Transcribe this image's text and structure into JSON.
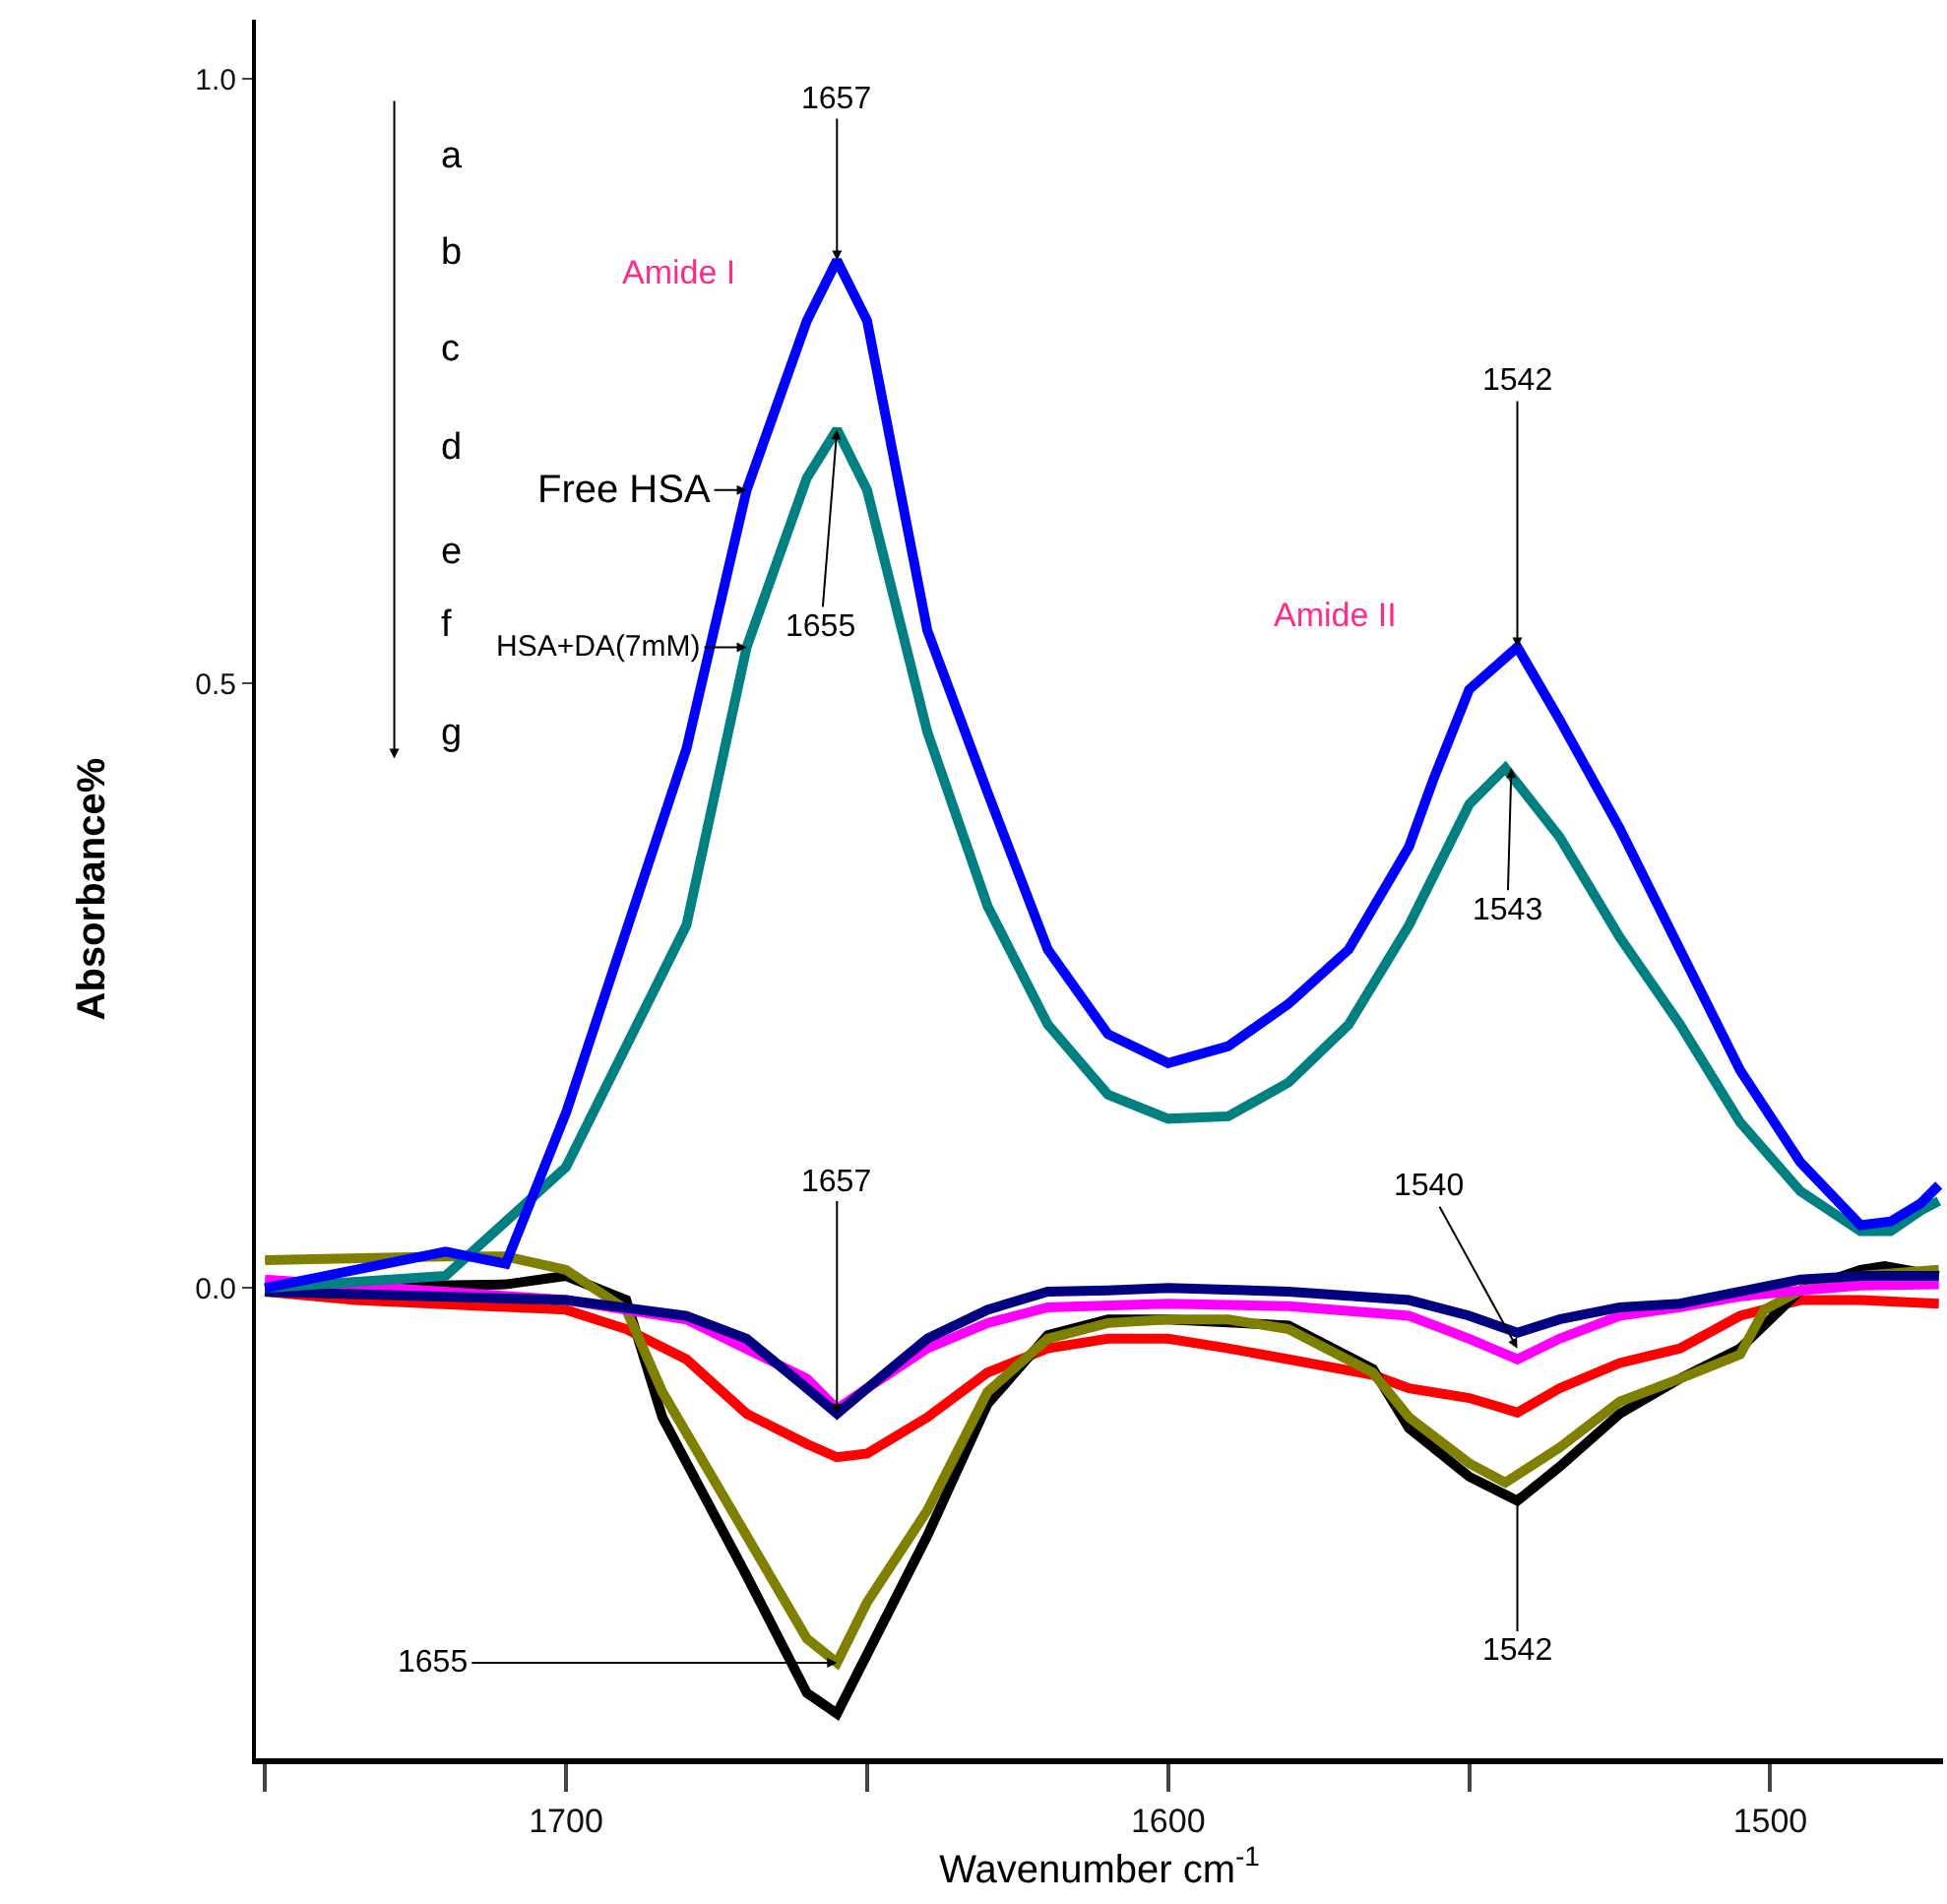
{
  "chart_data": {
    "type": "line",
    "xlabel": "Wavenumber cm$^{-1}$",
    "ylabel": "Absorbance%",
    "xlim": [
      1751.5,
      1471.3
    ],
    "ylim": [
      -0.389,
      1.049
    ],
    "xticks": [
      {
        "value": 1750,
        "label": null
      },
      1700,
      {
        "value": 1650,
        "label": null
      },
      1600,
      {
        "value": 1550,
        "label": null
      },
      1500
    ],
    "yticks": [
      {
        "value": 0,
        "label": "0.0"
      },
      0.5,
      {
        "value": 1,
        "label": "1.0"
      }
    ],
    "line_style": "solid",
    "series": [
      {
        "color": "#ff0000",
        "x": [
          1750,
          1735,
          1700,
          1690,
          1680,
          1670,
          1660,
          1655,
          1650,
          1640,
          1630,
          1620,
          1610,
          1600,
          1590,
          1580,
          1566,
          1560,
          1550,
          1542,
          1535,
          1525,
          1515,
          1505,
          1495,
          1485,
          1472
        ],
        "values": [
          -0.003,
          -0.01,
          -0.018,
          -0.034,
          -0.059,
          -0.104,
          -0.129,
          -0.14,
          -0.137,
          -0.107,
          -0.07,
          -0.05,
          -0.042,
          -0.042,
          -0.05,
          -0.059,
          -0.072,
          -0.083,
          -0.091,
          -0.103,
          -0.083,
          -0.062,
          -0.05,
          -0.023,
          -0.01,
          -0.01,
          -0.013
        ]
      },
      {
        "color": "#000000",
        "x": [
          1750,
          1710,
          1700,
          1690,
          1684,
          1670,
          1660,
          1655,
          1650,
          1640,
          1630,
          1620,
          1610,
          1600,
          1580,
          1566,
          1560,
          1550,
          1542,
          1535,
          1525,
          1515,
          1505,
          1495,
          1485,
          1481,
          1472
        ],
        "values": [
          0,
          0.003,
          0.01,
          -0.01,
          -0.107,
          -0.238,
          -0.335,
          -0.352,
          -0.303,
          -0.205,
          -0.096,
          -0.039,
          -0.026,
          -0.026,
          -0.031,
          -0.067,
          -0.116,
          -0.156,
          -0.176,
          -0.148,
          -0.104,
          -0.075,
          -0.05,
          -0.002,
          0.015,
          0.018,
          0.01
        ]
      },
      {
        "color": "#808000",
        "x": [
          1750,
          1720,
          1710,
          1700,
          1690,
          1684,
          1670,
          1660,
          1655,
          1650,
          1640,
          1630,
          1620,
          1610,
          1600,
          1590,
          1580,
          1566,
          1560,
          1550,
          1544,
          1535,
          1525,
          1515,
          1505,
          1501,
          1495,
          1485,
          1472
        ],
        "values": [
          0.023,
          0.026,
          0.026,
          0.015,
          -0.018,
          -0.086,
          -0.205,
          -0.29,
          -0.31,
          -0.26,
          -0.184,
          -0.086,
          -0.042,
          -0.029,
          -0.026,
          -0.026,
          -0.034,
          -0.07,
          -0.107,
          -0.145,
          -0.161,
          -0.132,
          -0.094,
          -0.075,
          -0.055,
          -0.018,
          -0.002,
          0.01,
          0.015
        ]
      },
      {
        "color": "#ff00ff",
        "x": [
          1750,
          1700,
          1680,
          1660,
          1655,
          1650,
          1640,
          1630,
          1620,
          1600,
          1580,
          1560,
          1550,
          1542,
          1535,
          1525,
          1515,
          1505,
          1495,
          1485,
          1472
        ],
        "values": [
          0.007,
          -0.01,
          -0.026,
          -0.075,
          -0.1,
          -0.083,
          -0.05,
          -0.029,
          -0.016,
          -0.013,
          -0.015,
          -0.023,
          -0.042,
          -0.059,
          -0.042,
          -0.023,
          -0.016,
          -0.007,
          -0.002,
          0.002,
          0.003
        ]
      },
      {
        "color": "#000080",
        "x": [
          1750,
          1700,
          1680,
          1670,
          1660,
          1655,
          1650,
          1640,
          1630,
          1620,
          1610,
          1600,
          1580,
          1560,
          1550,
          1542,
          1535,
          1525,
          1515,
          1505,
          1495,
          1485,
          1472
        ],
        "values": [
          -0.003,
          -0.01,
          -0.023,
          -0.042,
          -0.083,
          -0.104,
          -0.083,
          -0.042,
          -0.018,
          -0.003,
          -0.002,
          0,
          -0.003,
          -0.01,
          -0.023,
          -0.037,
          -0.026,
          -0.016,
          -0.013,
          -0.003,
          0.007,
          0.01,
          0.01
        ]
      },
      {
        "color": "#008080",
        "x": [
          1750,
          1720,
          1700,
          1680,
          1670,
          1660,
          1655,
          1650,
          1640,
          1630,
          1620,
          1610,
          1600,
          1590,
          1580,
          1570,
          1560,
          1550,
          1544,
          1535,
          1525,
          1515,
          1505,
          1495,
          1485,
          1480,
          1475,
          1472
        ],
        "values": [
          0,
          0.01,
          0.1,
          0.3,
          0.53,
          0.67,
          0.71,
          0.66,
          0.46,
          0.316,
          0.218,
          0.16,
          0.14,
          0.142,
          0.17,
          0.218,
          0.3,
          0.4,
          0.43,
          0.373,
          0.29,
          0.218,
          0.137,
          0.08,
          0.047,
          0.047,
          0.064,
          0.072
        ]
      },
      {
        "color": "#0000ff",
        "x": [
          1750,
          1720,
          1710,
          1700,
          1680,
          1670,
          1660,
          1655,
          1650,
          1640,
          1630,
          1620,
          1610,
          1600,
          1590,
          1580,
          1570,
          1560,
          1556,
          1550,
          1542,
          1535,
          1525,
          1515,
          1505,
          1495,
          1485,
          1480,
          1475,
          1472
        ],
        "values": [
          0,
          0.03,
          0.02,
          0.145,
          0.446,
          0.66,
          0.8,
          0.85,
          0.8,
          0.544,
          0.41,
          0.28,
          0.21,
          0.186,
          0.2,
          0.235,
          0.28,
          0.365,
          0.42,
          0.495,
          0.53,
          0.47,
          0.38,
          0.28,
          0.18,
          0.104,
          0.052,
          0.055,
          0.07,
          0.085
        ]
      }
    ],
    "annotations": [
      "a",
      "b",
      "c",
      "d",
      "e",
      "f",
      "g",
      "Amide I",
      "Amide II",
      {
        "text": "1657",
        "x": 1655,
        "y": 0.85
      },
      {
        "text": "Free HSA",
        "x": 1670,
        "y": 0.66
      },
      {
        "text": "HSA+DA(7mM)",
        "x": 1670,
        "y": 0.53
      },
      {
        "text": "1655",
        "x": 1655,
        "y": 0.71
      },
      {
        "text": "1542",
        "x": 1542,
        "y": 0.53
      },
      {
        "text": "1543",
        "x": 1543,
        "y": 0.43
      },
      {
        "text": "1657",
        "x": 1655,
        "y": -0.104
      },
      {
        "text": "1655",
        "x": 1655,
        "y": -0.31
      },
      {
        "text": "1540",
        "x": 1542,
        "y": -0.05
      },
      {
        "text": "1542",
        "x": 1542,
        "y": -0.17
      }
    ]
  }
}
